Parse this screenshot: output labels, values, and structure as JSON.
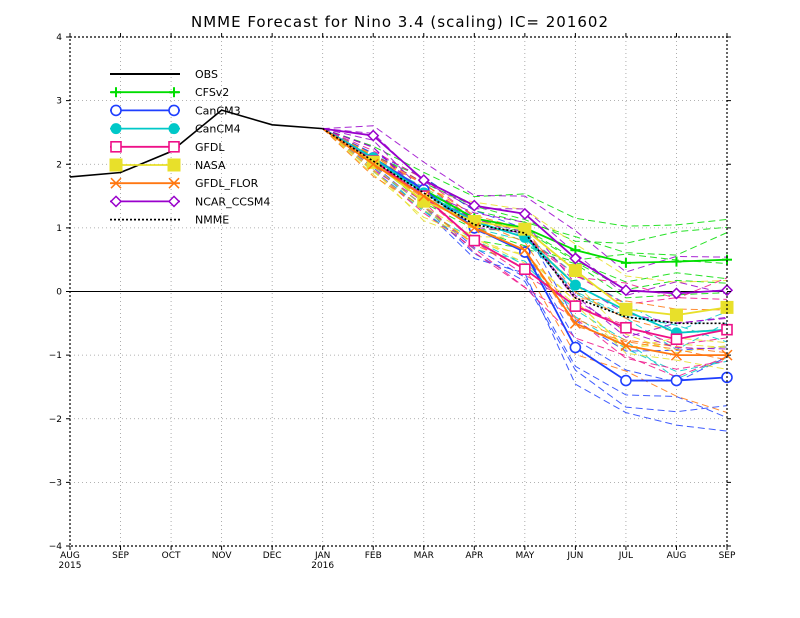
{
  "chart_data": {
    "type": "line",
    "title": "NMME Forecast for Nino 3.4 (scaling) IC= 201602",
    "xlabel": "",
    "ylabel": "",
    "x_tick_labels": [
      "AUG",
      "SEP",
      "OCT",
      "NOV",
      "DEC",
      "JAN",
      "FEB",
      "MAR",
      "APR",
      "MAY",
      "JUN",
      "JUL",
      "AUG",
      "SEP"
    ],
    "x_year_labels": [
      {
        "index": 0,
        "label": "2015"
      },
      {
        "index": 5,
        "label": "2016"
      }
    ],
    "xlim": [
      0,
      13
    ],
    "ylim": [
      -4,
      4
    ],
    "y_ticks": [
      -4,
      -3,
      -2,
      -1,
      0,
      1,
      2,
      3,
      4
    ],
    "grid": true,
    "grid_style": "dotted",
    "zero_line": true,
    "legend_placement": "top-left",
    "series": [
      {
        "name": "OBS",
        "color": "#000000",
        "marker": "none",
        "dashed": false,
        "x": [
          0,
          1,
          2,
          3,
          4,
          5
        ],
        "values": [
          1.8,
          1.87,
          2.2,
          2.85,
          2.62,
          2.56
        ]
      },
      {
        "name": "CFSv2",
        "color": "#00dd00",
        "marker": "plus",
        "dashed": false,
        "x": [
          5,
          6,
          7,
          8,
          9,
          10,
          11,
          12,
          13
        ],
        "values": [
          2.56,
          2.1,
          1.6,
          1.15,
          1.0,
          0.65,
          0.45,
          0.47,
          0.5
        ]
      },
      {
        "name": "CanCM3",
        "color": "#1f3fff",
        "marker": "circle",
        "dashed": false,
        "x": [
          5,
          6,
          7,
          8,
          9,
          10,
          11,
          12,
          13
        ],
        "values": [
          2.56,
          2.1,
          1.6,
          1.0,
          0.62,
          -0.88,
          -1.4,
          -1.4,
          -1.35
        ]
      },
      {
        "name": "CanCM4",
        "color": "#00c8c8",
        "marker": "filled-circle",
        "dashed": false,
        "x": [
          5,
          6,
          7,
          8,
          9,
          10,
          11,
          12,
          13
        ],
        "values": [
          2.56,
          2.1,
          1.55,
          1.1,
          0.85,
          0.1,
          -0.3,
          -0.65,
          -0.6
        ]
      },
      {
        "name": "GFDL",
        "color": "#ee1188",
        "marker": "square",
        "dashed": false,
        "x": [
          5,
          6,
          7,
          8,
          9,
          10,
          11,
          12,
          13
        ],
        "values": [
          2.56,
          2.05,
          1.5,
          0.8,
          0.35,
          -0.23,
          -0.57,
          -0.75,
          -0.6
        ]
      },
      {
        "name": "NASA",
        "color": "#e8e02a",
        "marker": "filled-square",
        "dashed": false,
        "x": [
          5,
          6,
          7,
          8,
          9,
          10,
          11,
          12,
          13
        ],
        "values": [
          2.56,
          2.03,
          1.42,
          1.1,
          0.98,
          0.33,
          -0.28,
          -0.37,
          -0.25
        ]
      },
      {
        "name": "GFDL_FLOR",
        "color": "#ff7711",
        "marker": "x",
        "dashed": false,
        "x": [
          5,
          6,
          7,
          8,
          9,
          10,
          11,
          12,
          13
        ],
        "values": [
          2.56,
          2.0,
          1.5,
          1.0,
          0.65,
          -0.5,
          -0.85,
          -1.0,
          -1.0
        ]
      },
      {
        "name": "NCAR_CCSM4",
        "color": "#9900cc",
        "marker": "diamond",
        "dashed": false,
        "x": [
          5,
          6,
          7,
          8,
          9,
          10,
          11,
          12,
          13
        ],
        "values": [
          2.56,
          2.45,
          1.75,
          1.35,
          1.22,
          0.52,
          0.02,
          -0.03,
          0.02
        ]
      },
      {
        "name": "NMME",
        "color": "#000000",
        "marker": "none",
        "dashed": true,
        "x": [
          5,
          6,
          7,
          8,
          9,
          10,
          11,
          12,
          13
        ],
        "values": [
          2.56,
          2.05,
          1.55,
          1.05,
          0.92,
          -0.1,
          -0.4,
          -0.5,
          -0.5
        ]
      }
    ]
  }
}
